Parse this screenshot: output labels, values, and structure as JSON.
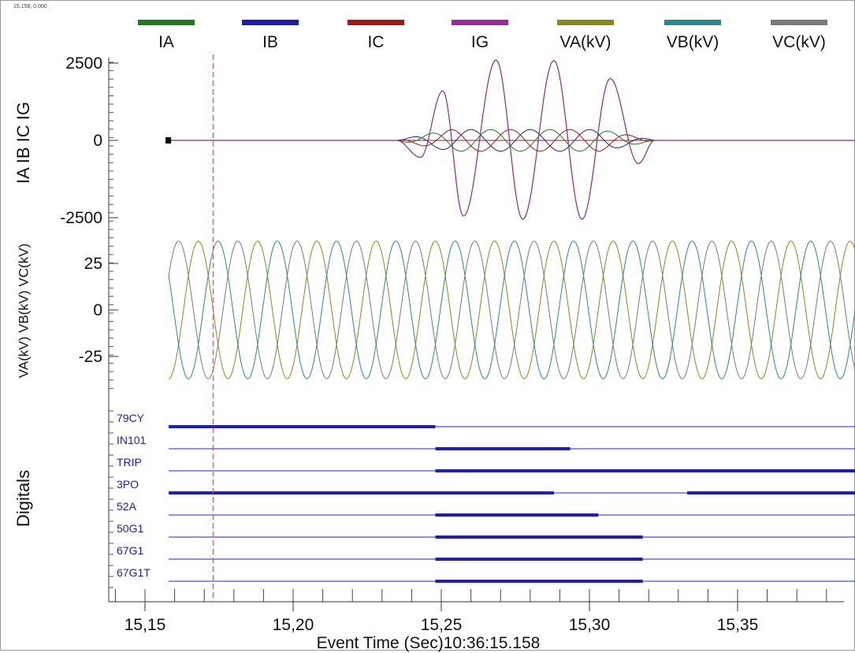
{
  "corner_readout": "15.158, 0.000",
  "chart_data": {
    "type": "line",
    "legend": [
      {
        "name": "IA",
        "color": "#1f7a1f"
      },
      {
        "name": "IB",
        "color": "#1c1caa"
      },
      {
        "name": "IC",
        "color": "#a01818"
      },
      {
        "name": "IG",
        "color": "#9a2a9a"
      },
      {
        "name": "VA(kV)",
        "color": "#8a8a1a"
      },
      {
        "name": "VB(kV)",
        "color": "#2a8a8a"
      },
      {
        "name": "VC(kV)",
        "color": "#7a7a7a"
      }
    ],
    "cursor_time": 15.173,
    "x": {
      "label": "Event Time (Sec)10:36:15.158",
      "range": [
        15.14,
        15.395
      ],
      "ticks": [
        15.15,
        15.2,
        15.25,
        15.3,
        15.35
      ],
      "tick_labels": [
        "15,15",
        "15,20",
        "15,25",
        "15,30",
        "15,35"
      ],
      "data_start": 15.158,
      "data_end": 15.392
    },
    "current_panel": {
      "ylabel": "IA IB IC IG",
      "ylim": [
        -2500,
        2500
      ],
      "ticks": [
        2500,
        0,
        -2500
      ],
      "tick_labels": [
        "2500",
        "0",
        "-2500"
      ],
      "fault_start": 15.235,
      "fault_end": 15.322,
      "fault_peaks": [
        {
          "t": 15.243,
          "v": -550
        },
        {
          "t": 15.2505,
          "v": 1600
        },
        {
          "t": 15.2575,
          "v": -2450
        },
        {
          "t": 15.2685,
          "v": 2600
        },
        {
          "t": 15.2775,
          "v": -2550
        },
        {
          "t": 15.288,
          "v": 2580
        },
        {
          "t": 15.2975,
          "v": -2550
        },
        {
          "t": 15.307,
          "v": 2000
        },
        {
          "t": 15.3165,
          "v": -750
        },
        {
          "t": 15.322,
          "v": 0
        }
      ],
      "small_amplitude": 350,
      "frequency_hz": 50
    },
    "voltage_panel": {
      "ylabel": "VA(kV) VB(kV) VC(kV)",
      "ylim": [
        -37,
        37
      ],
      "ticks": [
        25,
        0,
        -25
      ],
      "tick_labels": [
        "25",
        "0",
        "-25"
      ],
      "amplitude": 37,
      "frequency_hz": 50
    },
    "digital_panel": {
      "ylabel": "Digitals",
      "channels": [
        {
          "name": "79CY",
          "high": [
            [
              15.158,
              15.248
            ]
          ]
        },
        {
          "name": "IN101",
          "high": [
            [
              15.248,
              15.2935
            ]
          ]
        },
        {
          "name": "TRIP",
          "high": [
            [
              15.248,
              15.392
            ]
          ]
        },
        {
          "name": "3PO",
          "high": [
            [
              15.158,
              15.288
            ],
            [
              15.333,
              15.392
            ]
          ]
        },
        {
          "name": "52A",
          "high": [
            [
              15.248,
              15.303
            ]
          ]
        },
        {
          "name": "50G1",
          "high": [
            [
              15.248,
              15.318
            ]
          ]
        },
        {
          "name": "67G1",
          "high": [
            [
              15.248,
              15.318
            ]
          ]
        },
        {
          "name": "67G1T",
          "high": [
            [
              15.248,
              15.318
            ]
          ]
        }
      ]
    }
  }
}
